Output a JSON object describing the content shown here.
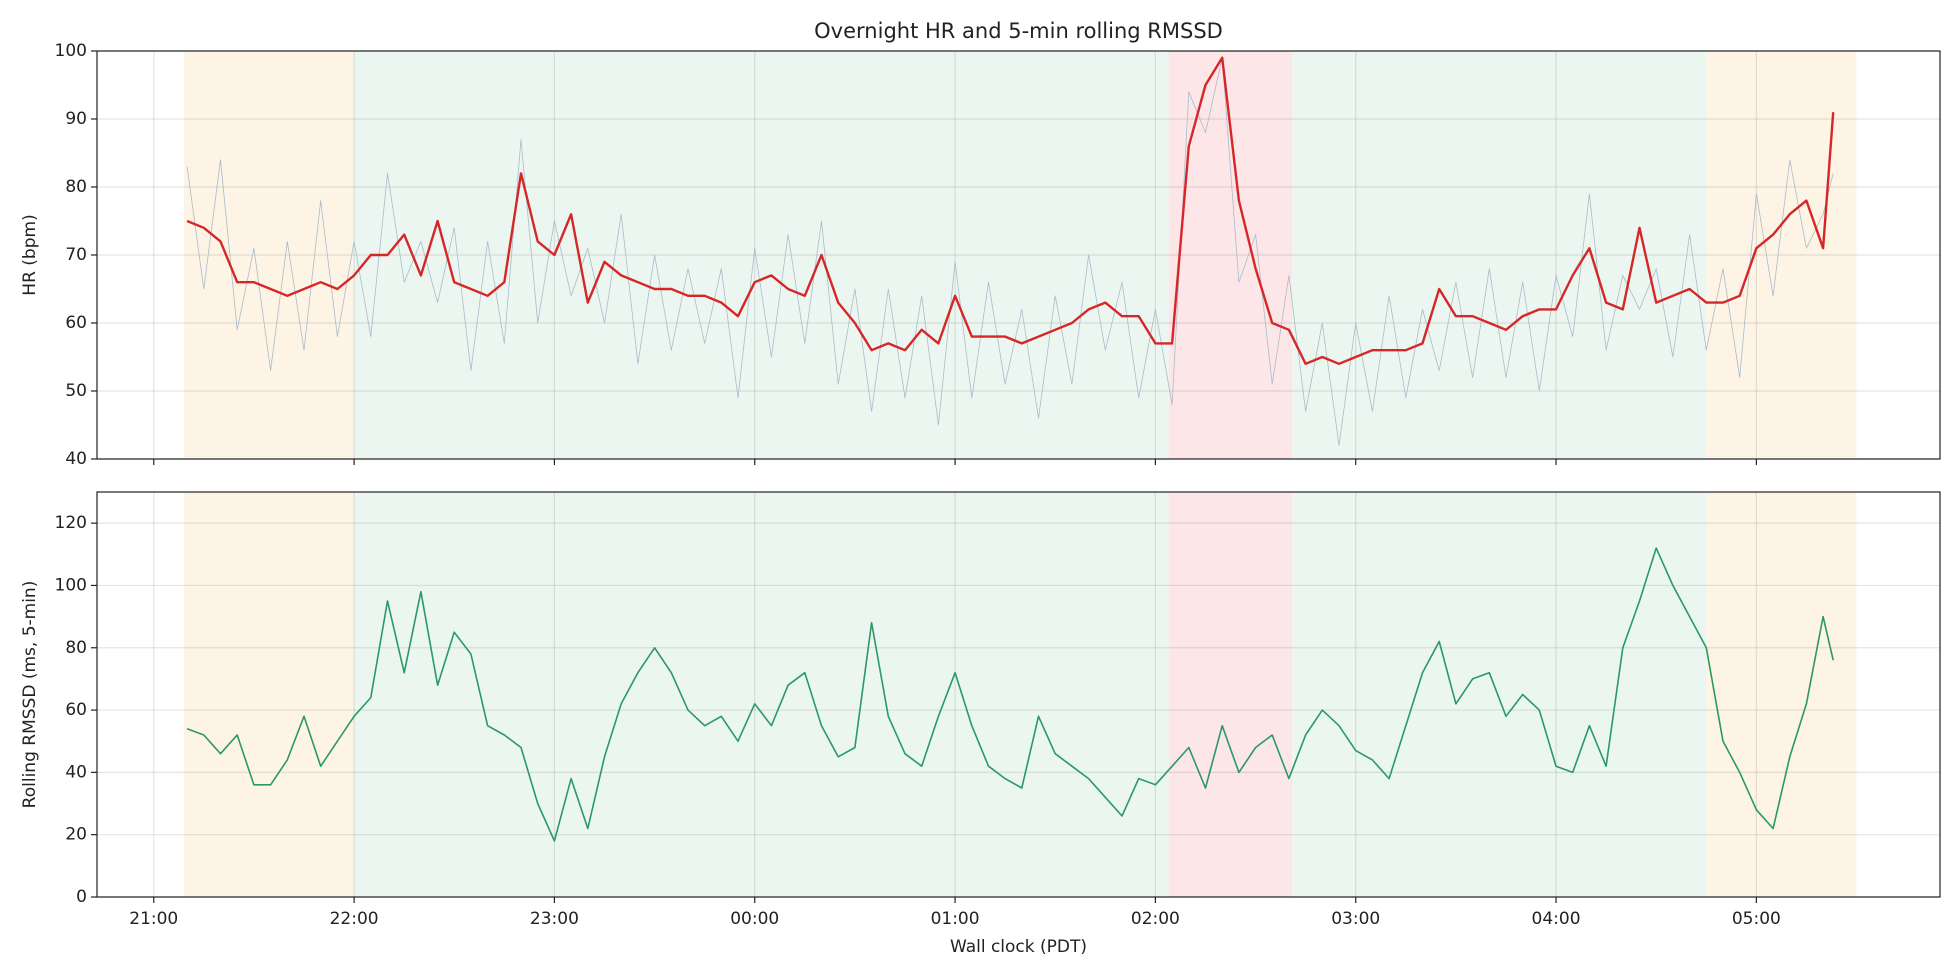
{
  "chart_data": [
    {
      "type": "line",
      "title": "Overnight HR and 5-min rolling RMSSD",
      "ylabel": "HR (bpm)",
      "xlim": [
        "20:43",
        "05:55"
      ],
      "ylim": [
        40,
        100
      ],
      "yticks": [
        40,
        50,
        60,
        70,
        80,
        90,
        100
      ],
      "grid": true,
      "spans": [
        {
          "start": "21:09",
          "end": "22:00",
          "color": "#fdf4e6"
        },
        {
          "start": "22:00",
          "end": "02:04",
          "color": "#ecf6f0"
        },
        {
          "start": "02:04",
          "end": "02:41",
          "color": "#fce6e7"
        },
        {
          "start": "02:41",
          "end": "04:45",
          "color": "#ecf6f0"
        },
        {
          "start": "04:45",
          "end": "05:30",
          "color": "#fdf4e6"
        }
      ],
      "x": [
        "21:10",
        "21:15",
        "21:20",
        "21:25",
        "21:30",
        "21:35",
        "21:40",
        "21:45",
        "21:50",
        "21:55",
        "22:00",
        "22:05",
        "22:10",
        "22:15",
        "22:20",
        "22:25",
        "22:30",
        "22:35",
        "22:40",
        "22:45",
        "22:50",
        "22:55",
        "23:00",
        "23:05",
        "23:10",
        "23:15",
        "23:20",
        "23:25",
        "23:30",
        "23:35",
        "23:40",
        "23:45",
        "23:50",
        "23:55",
        "00:00",
        "00:05",
        "00:10",
        "00:15",
        "00:20",
        "00:25",
        "00:30",
        "00:35",
        "00:40",
        "00:45",
        "00:50",
        "00:55",
        "01:00",
        "01:05",
        "01:10",
        "01:15",
        "01:20",
        "01:25",
        "01:30",
        "01:35",
        "01:40",
        "01:45",
        "01:50",
        "01:55",
        "02:00",
        "02:05",
        "02:10",
        "02:15",
        "02:20",
        "02:25",
        "02:30",
        "02:35",
        "02:40",
        "02:45",
        "02:50",
        "02:55",
        "03:00",
        "03:05",
        "03:10",
        "03:15",
        "03:20",
        "03:25",
        "03:30",
        "03:35",
        "03:40",
        "03:45",
        "03:50",
        "03:55",
        "04:00",
        "04:05",
        "04:10",
        "04:15",
        "04:20",
        "04:25",
        "04:30",
        "04:35",
        "04:40",
        "04:45",
        "04:50",
        "04:55",
        "05:00",
        "05:05",
        "05:10",
        "05:15",
        "05:20",
        "05:23"
      ],
      "series": [
        {
          "color": "#a8bccb",
          "width": 0.8,
          "values": [
            83,
            65,
            84,
            59,
            71,
            53,
            72,
            56,
            78,
            58,
            72,
            58,
            82,
            66,
            72,
            63,
            74,
            53,
            72,
            57,
            87,
            60,
            75,
            64,
            71,
            60,
            76,
            54,
            70,
            56,
            68,
            57,
            68,
            49,
            71,
            55,
            73,
            57,
            75,
            51,
            65,
            47,
            65,
            49,
            64,
            45,
            69,
            49,
            66,
            51,
            62,
            46,
            64,
            51,
            70,
            56,
            66,
            49,
            62,
            48,
            94,
            88,
            99,
            66,
            73,
            51,
            67,
            47,
            60,
            42,
            60,
            47,
            64,
            49,
            62,
            53,
            66,
            52,
            68,
            52,
            66,
            50,
            67,
            58,
            79,
            56,
            67,
            62,
            68,
            55,
            73,
            56,
            68,
            52,
            79,
            64,
            84,
            71,
            76,
            82
          ]
        },
        {
          "color": "#d62728",
          "width": 2.4,
          "values": [
            75,
            74,
            72,
            66,
            66,
            65,
            64,
            65,
            66,
            65,
            67,
            70,
            70,
            73,
            67,
            75,
            66,
            65,
            64,
            66,
            82,
            72,
            70,
            76,
            63,
            69,
            67,
            66,
            65,
            65,
            64,
            64,
            63,
            61,
            66,
            67,
            65,
            64,
            70,
            63,
            60,
            56,
            57,
            56,
            59,
            57,
            64,
            58,
            58,
            58,
            57,
            58,
            59,
            60,
            62,
            63,
            61,
            61,
            57,
            57,
            86,
            95,
            99,
            78,
            68,
            60,
            59,
            54,
            55,
            54,
            55,
            56,
            56,
            56,
            57,
            65,
            61,
            61,
            60,
            59,
            61,
            62,
            62,
            67,
            71,
            63,
            62,
            74,
            63,
            64,
            65,
            63,
            63,
            64,
            71,
            73,
            76,
            78,
            71,
            91
          ]
        }
      ]
    },
    {
      "type": "line",
      "ylabel": "Rolling RMSSD (ms, 5-min)",
      "xlabel": "Wall clock (PDT)",
      "xlim": [
        "20:43",
        "05:55"
      ],
      "xticks": [
        "21:00",
        "22:00",
        "23:00",
        "00:00",
        "01:00",
        "02:00",
        "03:00",
        "04:00",
        "05:00"
      ],
      "ylim": [
        0,
        130
      ],
      "yticks": [
        0,
        20,
        40,
        60,
        80,
        100,
        120
      ],
      "grid": true,
      "spans": [
        {
          "start": "21:09",
          "end": "22:00",
          "color": "#fdf4e6"
        },
        {
          "start": "22:00",
          "end": "02:04",
          "color": "#ecf6f0"
        },
        {
          "start": "02:04",
          "end": "02:41",
          "color": "#fce6e7"
        },
        {
          "start": "02:41",
          "end": "04:45",
          "color": "#ecf6f0"
        },
        {
          "start": "04:45",
          "end": "05:30",
          "color": "#fdf4e6"
        }
      ],
      "x": [
        "21:10",
        "21:15",
        "21:20",
        "21:25",
        "21:30",
        "21:35",
        "21:40",
        "21:45",
        "21:50",
        "21:55",
        "22:00",
        "22:05",
        "22:10",
        "22:15",
        "22:20",
        "22:25",
        "22:30",
        "22:35",
        "22:40",
        "22:45",
        "22:50",
        "22:55",
        "23:00",
        "23:05",
        "23:10",
        "23:15",
        "23:20",
        "23:25",
        "23:30",
        "23:35",
        "23:40",
        "23:45",
        "23:50",
        "23:55",
        "00:00",
        "00:05",
        "00:10",
        "00:15",
        "00:20",
        "00:25",
        "00:30",
        "00:35",
        "00:40",
        "00:45",
        "00:50",
        "00:55",
        "01:00",
        "01:05",
        "01:10",
        "01:15",
        "01:20",
        "01:25",
        "01:30",
        "01:35",
        "01:40",
        "01:45",
        "01:50",
        "01:55",
        "02:00",
        "02:05",
        "02:10",
        "02:15",
        "02:20",
        "02:25",
        "02:30",
        "02:35",
        "02:40",
        "02:45",
        "02:50",
        "02:55",
        "03:00",
        "03:05",
        "03:10",
        "03:15",
        "03:20",
        "03:25",
        "03:30",
        "03:35",
        "03:40",
        "03:45",
        "03:50",
        "03:55",
        "04:00",
        "04:05",
        "04:10",
        "04:15",
        "04:20",
        "04:25",
        "04:30",
        "04:35",
        "04:40",
        "04:45",
        "04:50",
        "04:55",
        "05:00",
        "05:05",
        "05:10",
        "05:15",
        "05:20",
        "05:23"
      ],
      "series": [
        {
          "color": "#2a9966",
          "width": 1.6,
          "values": [
            54,
            52,
            46,
            52,
            36,
            36,
            44,
            58,
            42,
            50,
            58,
            64,
            95,
            72,
            98,
            68,
            85,
            78,
            55,
            52,
            48,
            30,
            18,
            38,
            22,
            45,
            62,
            72,
            80,
            72,
            60,
            55,
            58,
            50,
            62,
            55,
            68,
            72,
            55,
            45,
            48,
            88,
            58,
            46,
            42,
            58,
            72,
            55,
            42,
            38,
            35,
            58,
            46,
            42,
            38,
            32,
            26,
            38,
            36,
            42,
            48,
            35,
            55,
            40,
            48,
            52,
            38,
            52,
            60,
            55,
            47,
            44,
            38,
            55,
            72,
            82,
            62,
            70,
            72,
            58,
            65,
            60,
            42,
            40,
            55,
            42,
            80,
            95,
            112,
            100,
            90,
            80,
            50,
            40,
            28,
            22,
            45,
            62,
            90,
            76
          ]
        }
      ]
    }
  ]
}
